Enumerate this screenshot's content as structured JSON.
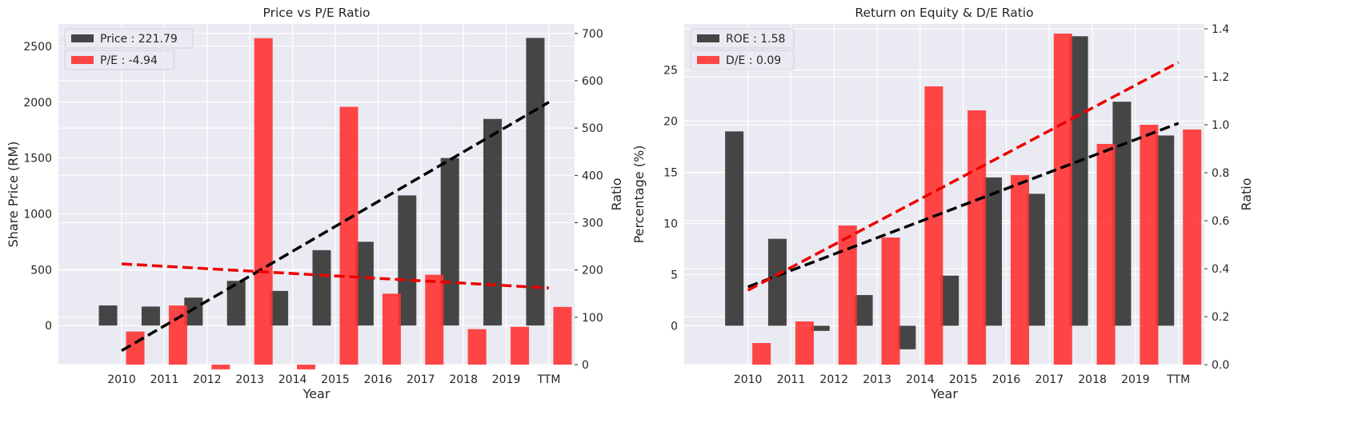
{
  "chart_data": [
    {
      "type": "bar",
      "title": "Price vs P/E Ratio",
      "xlabel": "Year",
      "ylabel": "Share Price (RM)",
      "y2label": "Ratio",
      "categories": [
        "2010",
        "2011",
        "2012",
        "2013",
        "2014",
        "2015",
        "2016",
        "2017",
        "2018",
        "2019",
        "TTM"
      ],
      "ylim": [
        -350,
        2700
      ],
      "yticks": [
        0,
        500,
        1000,
        1500,
        2000,
        2500
      ],
      "y2lim": [
        0,
        720
      ],
      "y2ticks": [
        0,
        100,
        200,
        300,
        400,
        500,
        600,
        700
      ],
      "grid": true,
      "legend_position": "top-left",
      "series": [
        {
          "name": "Price : 221.79",
          "axis": "left",
          "color": "#333333",
          "values": [
            180,
            170,
            250,
            400,
            310,
            675,
            750,
            1165,
            1500,
            1850,
            2575
          ]
        },
        {
          "name": "P/E : -4.94",
          "axis": "right",
          "color": "#ff3333",
          "values": [
            70,
            125,
            -10,
            690,
            -10,
            545,
            150,
            190,
            75,
            80,
            122
          ]
        }
      ],
      "trendlines": [
        {
          "axis": "left",
          "color": "#000000",
          "x": [
            "2010",
            "TTM"
          ],
          "y": [
            -225,
            2000
          ]
        },
        {
          "axis": "right",
          "color": "#ee0000",
          "x": [
            "2010",
            "TTM"
          ],
          "y": [
            213,
            162
          ]
        }
      ]
    },
    {
      "type": "bar",
      "title": "Return on Equity & D/E Ratio",
      "xlabel": "Year",
      "ylabel": "Percentage (%)",
      "y2label": "Ratio",
      "categories": [
        "2010",
        "2011",
        "2012",
        "2013",
        "2014",
        "2015",
        "2016",
        "2017",
        "2018",
        "2019",
        "TTM"
      ],
      "ylim": [
        -3.8,
        29.5
      ],
      "yticks": [
        0,
        5,
        10,
        15,
        20,
        25
      ],
      "y2lim": [
        0,
        1.42
      ],
      "y2ticks": [
        0.0,
        0.2,
        0.4,
        0.6,
        0.8,
        1.0,
        1.2,
        1.4
      ],
      "grid": true,
      "legend_position": "top-left",
      "series": [
        {
          "name": "ROE : 1.58",
          "axis": "left",
          "color": "#333333",
          "values": [
            19.0,
            8.5,
            -0.5,
            3.0,
            -2.3,
            4.9,
            14.5,
            12.9,
            28.3,
            21.9,
            18.6
          ]
        },
        {
          "name": "D/E : 0.09",
          "axis": "right",
          "color": "#ff3333",
          "values": [
            0.09,
            0.18,
            0.58,
            0.53,
            1.16,
            1.06,
            0.79,
            1.38,
            0.92,
            1.0,
            0.98
          ]
        }
      ],
      "trendlines": [
        {
          "axis": "left",
          "color": "#000000",
          "x": [
            "2010",
            "TTM"
          ],
          "y": [
            3.8,
            19.8
          ]
        },
        {
          "axis": "right",
          "color": "#ee0000",
          "x": [
            "2010",
            "TTM"
          ],
          "y": [
            0.31,
            1.26
          ]
        }
      ]
    }
  ]
}
